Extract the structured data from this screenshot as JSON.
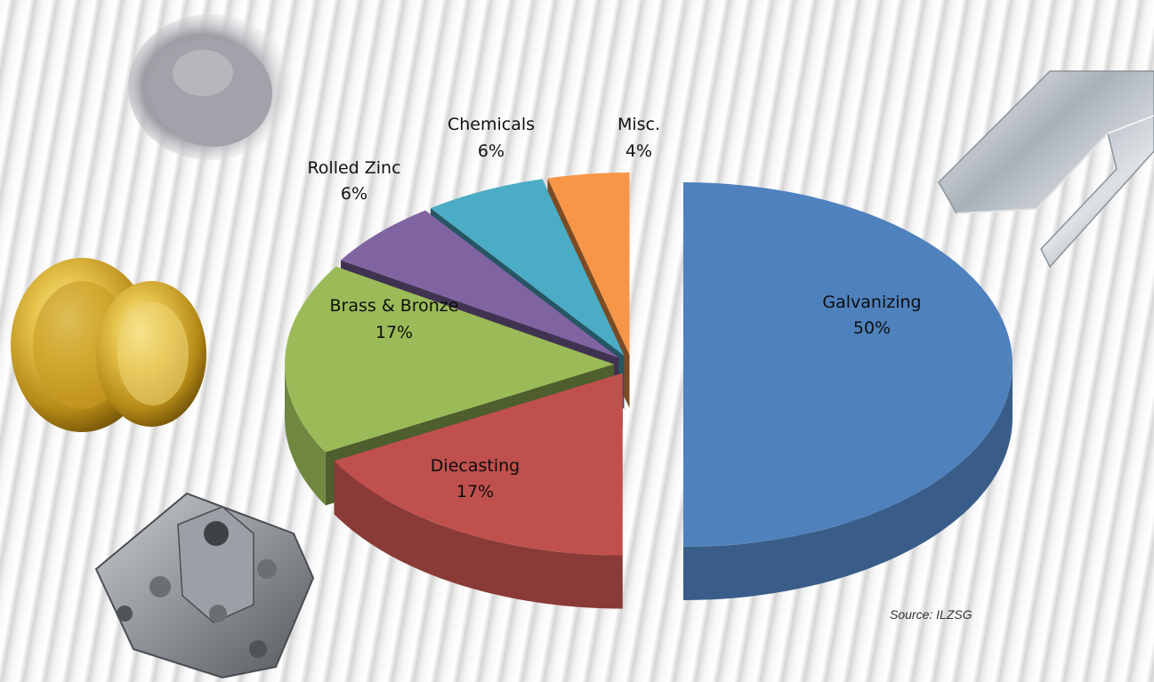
{
  "chart_data": {
    "type": "pie",
    "title": "",
    "categories": [
      "Galvanizing",
      "Diecasting",
      "Brass & Bronze",
      "Rolled Zinc",
      "Chemicals",
      "Misc."
    ],
    "values": [
      50,
      17,
      17,
      6,
      6,
      4
    ],
    "value_labels": [
      "50%",
      "17%",
      "17%",
      "6%",
      "6%",
      "4%"
    ],
    "colors": [
      "#4f81bd",
      "#c0504d",
      "#9bbb59",
      "#8064a2",
      "#4bacc6",
      "#f79646"
    ],
    "style": "3d-exploded",
    "legend": "none",
    "source": "Source: ILZSG"
  },
  "icons": [
    "zinc-powder-icon",
    "brass-door-knob-icon",
    "diecast-part-icon",
    "galvanized-steel-channel-icon"
  ]
}
